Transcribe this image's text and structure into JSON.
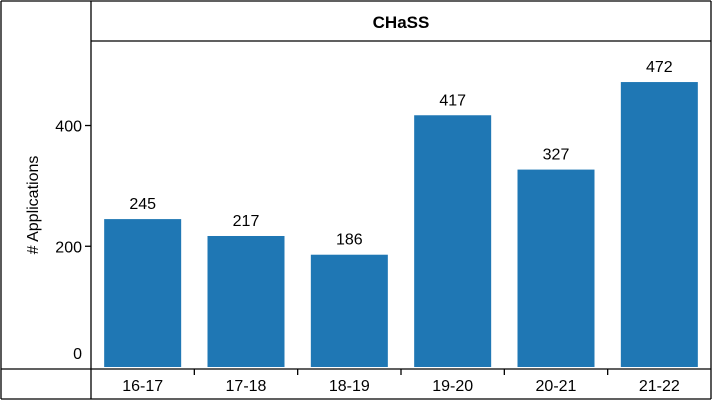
{
  "chart_data": {
    "type": "bar",
    "title": "CHaSS",
    "xlabel": "",
    "ylabel": "# Applications",
    "categories": [
      "16-17",
      "17-18",
      "18-19",
      "19-20",
      "20-21",
      "21-22"
    ],
    "values": [
      245,
      217,
      186,
      417,
      327,
      472
    ],
    "ylim": [
      0,
      510
    ],
    "yticks": [
      0,
      200,
      400
    ],
    "bar_color": "#1f77b4",
    "grid": false,
    "legend": "none"
  }
}
